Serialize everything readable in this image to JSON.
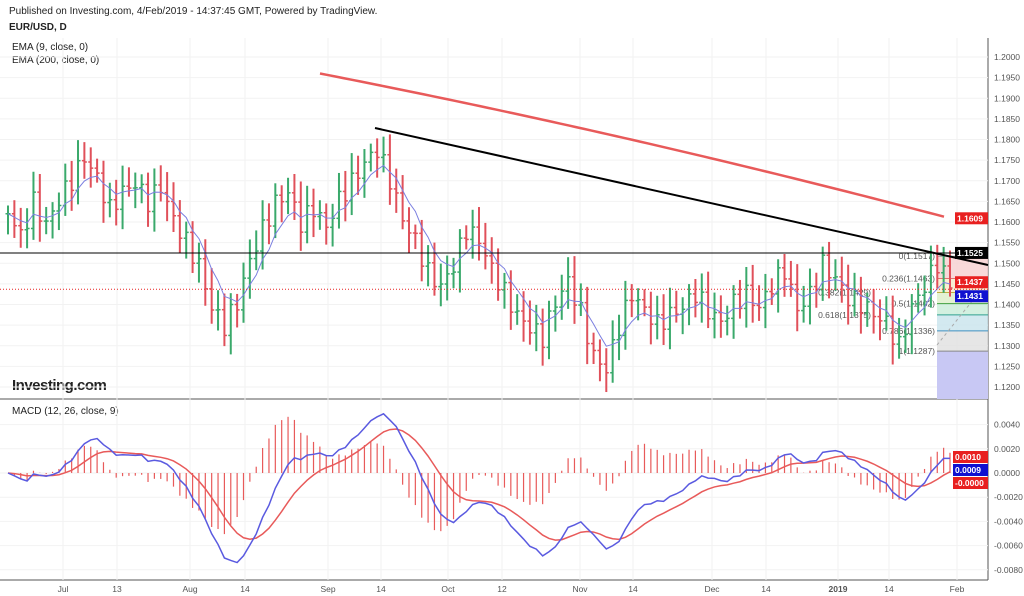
{
  "header": {
    "published": "Published on Investing.com, 4/Feb/2019 - 14:37:45 GMT, Powered by TradingView.",
    "symbol": "EUR/USD, D"
  },
  "indicators": {
    "ema9": "EMA (9, close, 0)",
    "ema200": "EMA (200, close, 0)",
    "macd": "MACD (12, 26, close, 9)"
  },
  "logo": "Investing.com",
  "colors": {
    "up": "#3aa96b",
    "down": "#e0505a",
    "ema9": "#7b7fe0",
    "ema200": "#e85a5a",
    "macd": "#5a5ae0",
    "signal": "#e85a5a"
  },
  "chart_data": {
    "type": "ohlc",
    "title": "EUR/USD, D",
    "xtick_labels": [
      "Jul",
      "13",
      "Aug",
      "14",
      "Sep",
      "14",
      "Oct",
      "12",
      "Nov",
      "14",
      "Dec",
      "14",
      "2019",
      "14",
      "Feb"
    ],
    "price_ticks": [
      "1.2000",
      "1.1950",
      "1.1900",
      "1.1850",
      "1.1800",
      "1.1750",
      "1.1700",
      "1.1650",
      "1.1600",
      "1.1550",
      "1.1500",
      "1.1450",
      "1.1400",
      "1.1350",
      "1.1300",
      "1.1250",
      "1.1200"
    ],
    "price_range": [
      1.116,
      1.207
    ],
    "closes": [
      1.162,
      1.156,
      1.165,
      1.16,
      1.166,
      1.17,
      1.175,
      1.17,
      1.163,
      1.168,
      1.17,
      1.165,
      1.168,
      1.16,
      1.155,
      1.15,
      1.14,
      1.135,
      1.14,
      1.15,
      1.158,
      1.165,
      1.168,
      1.16,
      1.163,
      1.158,
      1.165,
      1.17,
      1.175,
      1.178,
      1.17,
      1.16,
      1.155,
      1.148,
      1.145,
      1.15,
      1.158,
      1.155,
      1.148,
      1.143,
      1.138,
      1.135,
      1.132,
      1.14,
      1.145,
      1.138,
      1.128,
      1.125,
      1.135,
      1.142,
      1.138,
      1.135,
      1.138,
      1.14,
      1.143,
      1.138,
      1.135,
      1.14,
      1.143,
      1.14,
      1.145,
      1.148,
      1.138,
      1.142,
      1.15,
      1.147,
      1.142,
      1.14,
      1.137,
      1.135,
      1.13,
      1.14,
      1.145,
      1.15,
      1.144
    ],
    "ema200": {
      "start": 1.196,
      "end": 1.1609
    },
    "price_tags": [
      {
        "value": "1.1609",
        "color": "#e82020"
      },
      {
        "value": "1.1525",
        "color": "#000000"
      },
      {
        "value": "1.1437",
        "color": "#e82020"
      },
      {
        "value": "1.1431",
        "color": "#1010d0"
      }
    ],
    "fib_levels": [
      {
        "label": "0(1.1517)",
        "v": 1.1517,
        "c": "#999"
      },
      {
        "label": "0.236(1.1463)",
        "v": 1.1463,
        "c": "#e07070"
      },
      {
        "label": "0.382(1.1429)",
        "v": 1.1429,
        "c": "#c0b040"
      },
      {
        "label": "0.5(1.1402)",
        "v": 1.1402,
        "c": "#40a040"
      },
      {
        "label": "0.618(1.1375)",
        "v": 1.1375,
        "c": "#30a090"
      },
      {
        "label": "0.786(1.1336)",
        "v": 1.1336,
        "c": "#4090c0"
      },
      {
        "label": "1(1.1287)",
        "v": 1.1287,
        "c": "#888"
      }
    ],
    "macd_ticks": [
      "0.0040",
      "0.0020",
      "0.0000",
      "-0.0020",
      "-0.0040",
      "-0.0060",
      "-0.0080"
    ],
    "macd_tags": [
      {
        "value": "0.0010",
        "color": "#e82020"
      },
      {
        "value": "0.0009",
        "color": "#1010d0"
      },
      {
        "value": "-0.0000",
        "color": "#e82020"
      }
    ]
  }
}
